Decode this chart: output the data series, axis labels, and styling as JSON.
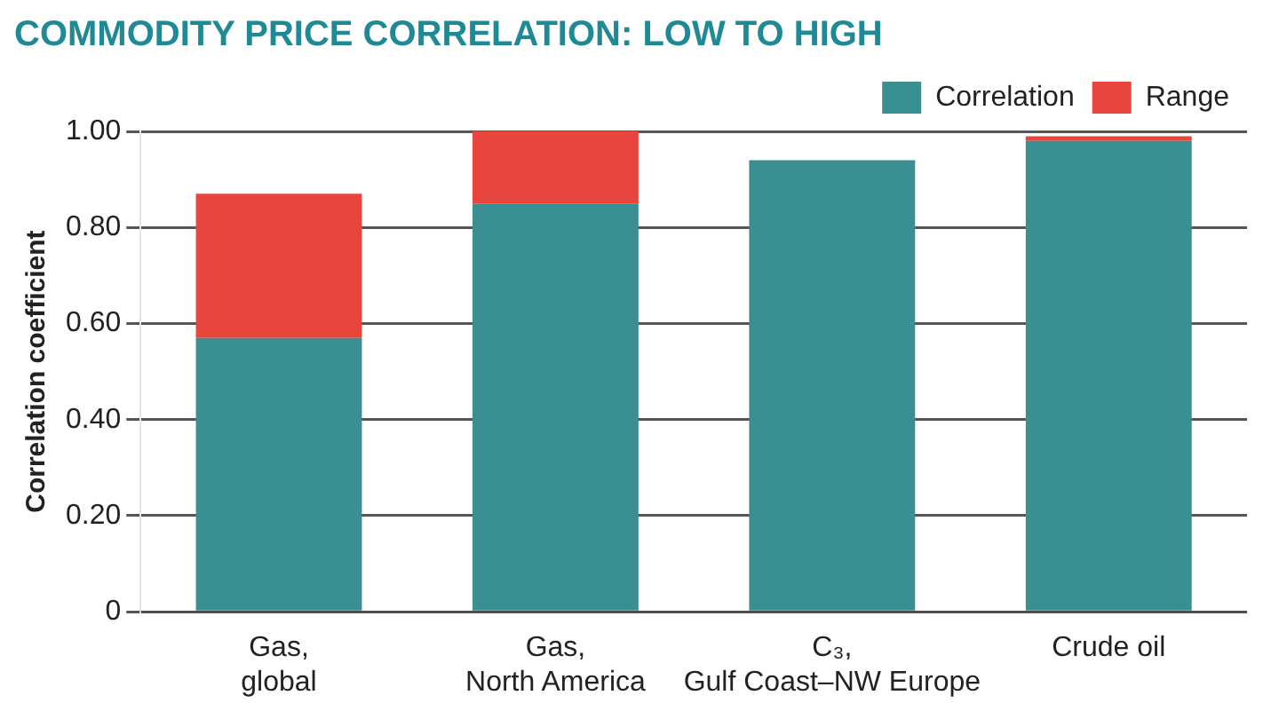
{
  "chart_data": {
    "type": "bar",
    "title": "COMMODITY PRICE CORRELATION: LOW TO HIGH",
    "ylabel": "Correlation coefficient",
    "categories": [
      "Gas, global",
      "Gas, North America",
      "C₃, Gulf Coast–NW Europe",
      "Crude oil"
    ],
    "series": [
      {
        "name": "Correlation",
        "color": "#3a8f93",
        "values": [
          0.57,
          0.85,
          0.94,
          0.98
        ]
      },
      {
        "name": "Range",
        "color": "#e8463c",
        "values": [
          0.3,
          0.15,
          0,
          0.01
        ]
      }
    ],
    "stacked": true,
    "ylim": [
      0,
      1
    ],
    "yticks": [
      0,
      {
        "value": 0.2,
        "label": "0.20"
      },
      {
        "value": 0.4,
        "label": "0.40"
      },
      {
        "value": 0.6,
        "label": "0.60"
      },
      {
        "value": 0.8,
        "label": "0.80"
      },
      {
        "value": 1,
        "label": "1.00"
      }
    ],
    "grid": "y",
    "legend": "top right"
  }
}
